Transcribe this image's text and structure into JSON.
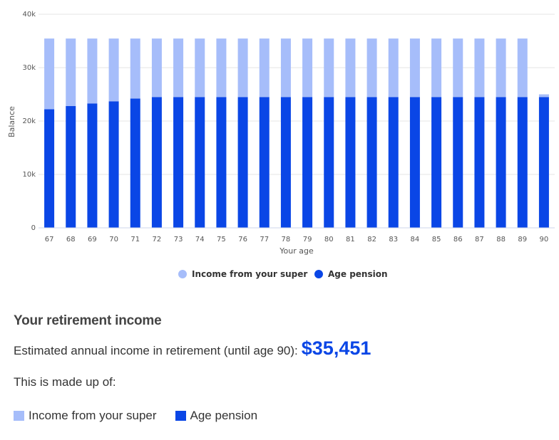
{
  "chart_data": {
    "type": "bar",
    "stacked": true,
    "xlabel": "Your age",
    "ylabel": "Balance",
    "categories": [
      "67",
      "68",
      "69",
      "70",
      "71",
      "72",
      "73",
      "74",
      "75",
      "76",
      "77",
      "78",
      "79",
      "80",
      "81",
      "82",
      "83",
      "84",
      "85",
      "86",
      "87",
      "88",
      "89",
      "90"
    ],
    "ylim": [
      0,
      40000
    ],
    "yticks": [
      "0",
      "10k",
      "20k",
      "30k",
      "40k"
    ],
    "ytick_values": [
      0,
      10000,
      20000,
      30000,
      40000
    ],
    "grid": true,
    "legend_position": "bottom",
    "series": [
      {
        "name": "Age pension",
        "color": "#0a46e6",
        "values": [
          22200,
          22800,
          23300,
          23700,
          24200,
          24500,
          24500,
          24500,
          24500,
          24500,
          24500,
          24500,
          24500,
          24500,
          24500,
          24500,
          24500,
          24500,
          24500,
          24500,
          24500,
          24500,
          24500,
          24500
        ]
      },
      {
        "name": "Income from your super",
        "color": "#a6bdfa",
        "values": [
          13250,
          12650,
          12150,
          11750,
          11250,
          10950,
          10950,
          10950,
          10950,
          10950,
          10950,
          10950,
          10950,
          10950,
          10950,
          10950,
          10950,
          10950,
          10950,
          10950,
          10950,
          10950,
          10950,
          500
        ]
      }
    ]
  },
  "summary": {
    "title": "Your retirement income",
    "estimate_label": "Estimated annual income in retirement (until age 90):",
    "estimate_value": "$35,451",
    "estimate_color": "#0a46e6",
    "made_up_label": "This is made up of:",
    "legend": [
      {
        "label": "Income from your super",
        "color": "#a6bdfa"
      },
      {
        "label": "Age pension",
        "color": "#0a46e6"
      }
    ]
  }
}
